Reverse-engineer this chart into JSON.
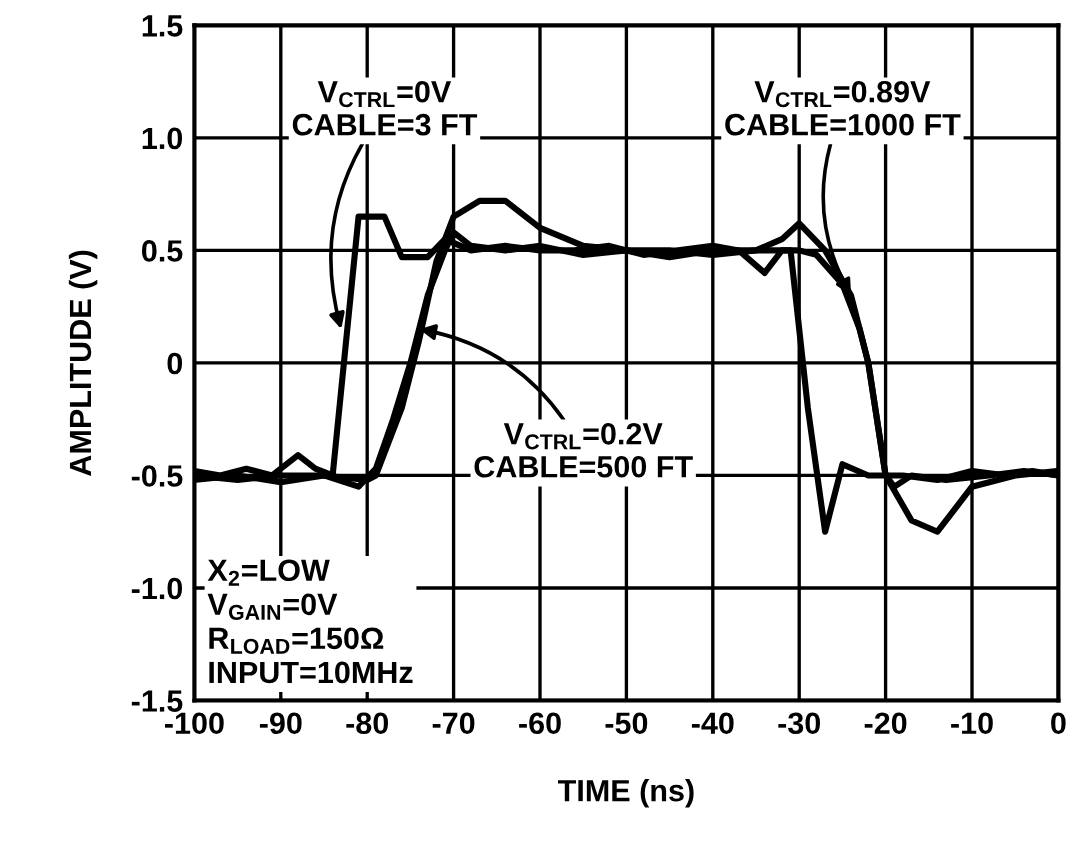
{
  "chart_data": {
    "type": "line",
    "xlabel": "TIME (ns)",
    "ylabel": "AMPLITUDE (V)",
    "xlim": [
      -100,
      0
    ],
    "xticks": [
      -100,
      -90,
      -80,
      -70,
      -60,
      -50,
      -40,
      -30,
      -20,
      -10,
      0
    ],
    "ylim": [
      -1.5,
      1.5
    ],
    "yticks": [
      -1.5,
      {
        "value": -1.0,
        "label": "-1.0"
      },
      -0.5,
      0,
      0.5,
      {
        "value": 1.0,
        "label": "1.0"
      },
      1.5
    ],
    "grid": true,
    "legend": false,
    "marker": "none",
    "line_style": "solid",
    "series": [
      {
        "color": "#000000",
        "x": [
          -100,
          -97,
          -94,
          -91,
          -88,
          -86,
          -84,
          -81,
          -78,
          -76,
          -73,
          -71,
          -68,
          -64,
          -60,
          -56,
          -52,
          -48,
          -44,
          -40,
          -37,
          -34,
          -32,
          -31,
          -29,
          -27,
          -25,
          -22,
          -18,
          -14,
          -10,
          -6,
          -3,
          0
        ],
        "values": [
          -0.48,
          -0.5,
          -0.47,
          -0.5,
          -0.41,
          -0.47,
          -0.5,
          0.65,
          0.65,
          0.47,
          0.47,
          0.55,
          0.5,
          0.52,
          0.5,
          0.5,
          0.52,
          0.48,
          0.5,
          0.52,
          0.5,
          0.4,
          0.5,
          0.5,
          -0.2,
          -0.75,
          -0.45,
          -0.5,
          -0.5,
          -0.52,
          -0.48,
          -0.5,
          -0.48,
          -0.5
        ]
      },
      {
        "color": "#000000",
        "x": [
          -100,
          -95,
          -90,
          -85,
          -81,
          -79,
          -77,
          -75,
          -73,
          -71,
          -70,
          -68,
          -64,
          -60,
          -55,
          -50,
          -45,
          -40,
          -35,
          -30,
          -28,
          -25,
          -23,
          -22,
          -20,
          -19,
          -17,
          -13,
          -8,
          -4,
          0
        ],
        "values": [
          -0.52,
          -0.5,
          -0.53,
          -0.5,
          -0.55,
          -0.47,
          -0.25,
          0.0,
          0.3,
          0.5,
          0.58,
          0.52,
          0.5,
          0.52,
          0.48,
          0.5,
          0.47,
          0.5,
          0.5,
          0.5,
          0.48,
          0.35,
          0.15,
          0.0,
          -0.5,
          -0.55,
          -0.5,
          -0.52,
          -0.5,
          -0.48,
          -0.5
        ]
      },
      {
        "color": "#000000",
        "x": [
          -100,
          -95,
          -90,
          -85,
          -80,
          -79,
          -76,
          -74,
          -72,
          -70,
          -67,
          -64,
          -60,
          -55,
          -50,
          -45,
          -40,
          -35,
          -32,
          -30,
          -27,
          -24,
          -22,
          -20,
          -17,
          -14,
          -10,
          -5,
          0
        ],
        "values": [
          -0.5,
          -0.52,
          -0.5,
          -0.5,
          -0.52,
          -0.5,
          -0.2,
          0.1,
          0.45,
          0.65,
          0.72,
          0.72,
          0.6,
          0.52,
          0.5,
          0.5,
          0.48,
          0.5,
          0.55,
          0.62,
          0.5,
          0.3,
          0.0,
          -0.5,
          -0.7,
          -0.75,
          -0.55,
          -0.5,
          -0.48
        ]
      }
    ],
    "annotations": [
      {
        "text": "V$_{CTRL}$=0V\nCABLE=3 FT",
        "x": -83,
        "y": 0.15
      },
      {
        "text": "V$_{CTRL}$=0.2V\nCABLE=500 FT",
        "x": -74,
        "y": 0.15
      },
      {
        "text": "V$_{CTRL}$=0.89V\nCABLE=1000 FT",
        "x": -24,
        "y": 0.3
      },
      "X$_{2}$=LOW\nV$_{GAIN}$=0V\nR$_{LOAD}$=150Ω\nINPUT=10MHz"
    ]
  }
}
